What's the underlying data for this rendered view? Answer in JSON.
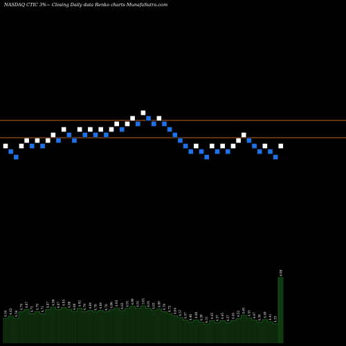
{
  "header": {
    "title": "NASDAQ CTIC 3%~ Closing Daily data Renko charts MunafaSutra.com"
  },
  "colors": {
    "background": "#000000",
    "up_brick": "#ffffff",
    "down_brick": "#1e72e6",
    "brick_border": "#000000",
    "reference_line": "#c8641e",
    "volume_bar": "#0d2a0d",
    "volume_bar_last": "#123a12",
    "volume_outline": "#1f7a1f",
    "text": "#ffffff"
  },
  "chart_data": [
    {
      "type": "renko",
      "title": "NASDAQ CTIC 3%~ Closing Daily data Renko charts MunafaSutra.com",
      "brick_size_label": "3%",
      "reference_lines": [
        1,
        0
      ],
      "bricks": [
        {
          "level": -1,
          "dir": "up"
        },
        {
          "level": -2,
          "dir": "down"
        },
        {
          "level": -3,
          "dir": "down"
        },
        {
          "level": -1,
          "dir": "up"
        },
        {
          "level": 0,
          "dir": "up"
        },
        {
          "level": -1,
          "dir": "down"
        },
        {
          "level": 0,
          "dir": "up"
        },
        {
          "level": -1,
          "dir": "down"
        },
        {
          "level": 0,
          "dir": "up"
        },
        {
          "level": 1,
          "dir": "up"
        },
        {
          "level": 0,
          "dir": "down"
        },
        {
          "level": 2,
          "dir": "up"
        },
        {
          "level": 1,
          "dir": "down"
        },
        {
          "level": 0,
          "dir": "down"
        },
        {
          "level": 2,
          "dir": "up"
        },
        {
          "level": 1,
          "dir": "down"
        },
        {
          "level": 2,
          "dir": "up"
        },
        {
          "level": 1,
          "dir": "down"
        },
        {
          "level": 2,
          "dir": "up"
        },
        {
          "level": 1,
          "dir": "down"
        },
        {
          "level": 2,
          "dir": "up"
        },
        {
          "level": 3,
          "dir": "up"
        },
        {
          "level": 2,
          "dir": "down"
        },
        {
          "level": 3,
          "dir": "up"
        },
        {
          "level": 4,
          "dir": "up"
        },
        {
          "level": 3,
          "dir": "down"
        },
        {
          "level": 5,
          "dir": "up"
        },
        {
          "level": 4,
          "dir": "down"
        },
        {
          "level": 3,
          "dir": "down"
        },
        {
          "level": 4,
          "dir": "up"
        },
        {
          "level": 3,
          "dir": "down"
        },
        {
          "level": 2,
          "dir": "down"
        },
        {
          "level": 1,
          "dir": "down"
        },
        {
          "level": 0,
          "dir": "down"
        },
        {
          "level": -1,
          "dir": "down"
        },
        {
          "level": -2,
          "dir": "down"
        },
        {
          "level": -1,
          "dir": "up"
        },
        {
          "level": -2,
          "dir": "down"
        },
        {
          "level": -3,
          "dir": "down"
        },
        {
          "level": -1,
          "dir": "up"
        },
        {
          "level": -2,
          "dir": "down"
        },
        {
          "level": -1,
          "dir": "up"
        },
        {
          "level": -2,
          "dir": "down"
        },
        {
          "level": -1,
          "dir": "up"
        },
        {
          "level": 0,
          "dir": "up"
        },
        {
          "level": 1,
          "dir": "up"
        },
        {
          "level": 0,
          "dir": "down"
        },
        {
          "level": -1,
          "dir": "down"
        },
        {
          "level": -2,
          "dir": "down"
        },
        {
          "level": -1,
          "dir": "up"
        },
        {
          "level": -2,
          "dir": "down"
        },
        {
          "level": -3,
          "dir": "down"
        },
        {
          "level": -1,
          "dir": "up"
        }
      ]
    },
    {
      "type": "bar",
      "series": [
        {
          "values": [
            4.54,
            4.62,
            4.54,
            4.79,
            4.87,
            4.71,
            4.79,
            4.71,
            4.87,
            4.96,
            4.87,
            4.95,
            4.88,
            4.8,
            4.92,
            4.79,
            4.84,
            4.78,
            4.84,
            4.78,
            4.86,
            4.93,
            4.83,
            4.91,
            4.99,
            4.91,
            5.01,
            4.91,
            4.83,
            4.89,
            4.79,
            4.72,
            4.64,
            4.57,
            4.47,
            4.4,
            4.48,
            4.39,
            4.31,
            4.45,
            4.37,
            4.45,
            4.37,
            4.45,
            4.53,
            4.65,
            4.55,
            4.47,
            4.39,
            4.49,
            4.41,
            4.33,
            6.08
          ],
          "labels": [
            "4.54",
            "4.62",
            "4.54",
            "4.79",
            "4.87",
            "4.71",
            "4.79",
            "4.71",
            "4.87",
            "4.96",
            "4.87",
            "4.95",
            "4.88",
            "4.80",
            "4.92",
            "4.79",
            "4.84",
            "4.78",
            "4.84",
            "4.78",
            "4.86",
            "4.93",
            "4.83",
            "4.91",
            "4.99",
            "4.91",
            "5.01",
            "4.91",
            "4.83",
            "4.89",
            "4.79",
            "4.72",
            "4.64",
            "4.57",
            "4.47",
            "4.40",
            "4.48",
            "4.39",
            "4.31",
            "4.45",
            "4.37",
            "4.45",
            "4.37",
            "4.45",
            "4.53",
            "4.65",
            "4.55",
            "4.47",
            "4.39",
            "4.49",
            "4.41",
            "4.33",
            "6.08"
          ]
        }
      ]
    }
  ]
}
